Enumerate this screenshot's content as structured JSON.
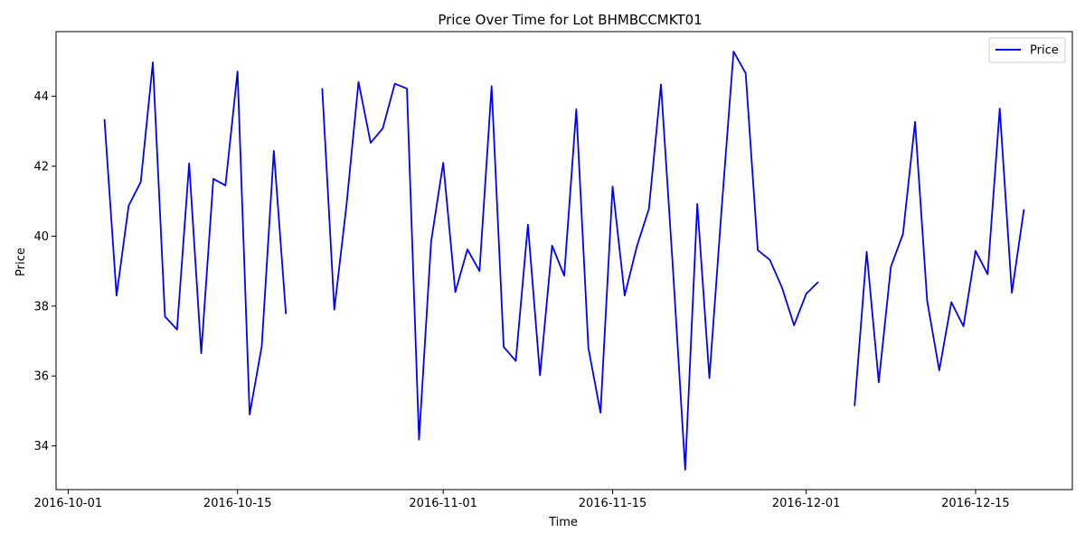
{
  "chart_data": {
    "type": "line",
    "title": "Price Over Time for Lot BHMBCCMKT01",
    "xlabel": "Time",
    "ylabel": "Price",
    "x_range": [
      "2016-09-30",
      "2016-12-23"
    ],
    "ylim": [
      32.75,
      45.85
    ],
    "x_ticks": [
      "2016-10-01",
      "2016-10-15",
      "2016-11-01",
      "2016-11-15",
      "2016-12-01",
      "2016-12-15"
    ],
    "y_ticks": [
      34,
      36,
      38,
      40,
      42,
      44
    ],
    "legend": {
      "position": "top-right",
      "entries": [
        "Price"
      ]
    },
    "grid": false,
    "series": [
      {
        "name": "Price",
        "color": "#0000ff",
        "points": [
          [
            "2016-10-04",
            43.35
          ],
          [
            "2016-10-05",
            38.3
          ],
          [
            "2016-10-06",
            40.87
          ],
          [
            "2016-10-07",
            41.55
          ],
          [
            "2016-10-08",
            44.97
          ],
          [
            "2016-10-09",
            37.7
          ],
          [
            "2016-10-10",
            37.33
          ],
          [
            "2016-10-11",
            42.08
          ],
          [
            "2016-10-12",
            36.65
          ],
          [
            "2016-10-13",
            41.64
          ],
          [
            "2016-10-14",
            41.45
          ],
          [
            "2016-10-15",
            44.71
          ],
          [
            "2016-10-16",
            34.9
          ],
          [
            "2016-10-17",
            36.85
          ],
          [
            "2016-10-18",
            42.44
          ],
          [
            "2016-10-19",
            37.77
          ],
          null,
          [
            "2016-10-22",
            44.23
          ],
          [
            "2016-10-23",
            37.9
          ],
          [
            "2016-10-24",
            40.87
          ],
          [
            "2016-10-25",
            44.41
          ],
          [
            "2016-10-26",
            42.67
          ],
          [
            "2016-10-27",
            43.08
          ],
          [
            "2016-10-28",
            44.36
          ],
          [
            "2016-10-29",
            44.22
          ],
          [
            "2016-10-30",
            34.18
          ],
          [
            "2016-10-31",
            39.84
          ],
          [
            "2016-11-01",
            42.1
          ],
          [
            "2016-11-02",
            38.4
          ],
          [
            "2016-11-03",
            39.62
          ],
          [
            "2016-11-04",
            39.0
          ],
          [
            "2016-11-05",
            44.29
          ],
          [
            "2016-11-06",
            36.83
          ],
          [
            "2016-11-07",
            36.43
          ],
          [
            "2016-11-08",
            40.33
          ],
          [
            "2016-11-09",
            36.02
          ],
          [
            "2016-11-10",
            39.73
          ],
          [
            "2016-11-11",
            38.87
          ],
          [
            "2016-11-12",
            43.63
          ],
          [
            "2016-11-13",
            36.8
          ],
          [
            "2016-11-14",
            34.95
          ],
          [
            "2016-11-15",
            41.42
          ],
          [
            "2016-11-16",
            38.3
          ],
          [
            "2016-11-17",
            39.7
          ],
          [
            "2016-11-18",
            40.78
          ],
          [
            "2016-11-19",
            44.34
          ],
          [
            "2016-11-20",
            39.0
          ],
          [
            "2016-11-21",
            33.32
          ],
          [
            "2016-11-22",
            40.92
          ],
          [
            "2016-11-23",
            35.94
          ],
          [
            "2016-11-24",
            40.73
          ],
          [
            "2016-11-25",
            45.28
          ],
          [
            "2016-11-26",
            44.66
          ],
          [
            "2016-11-27",
            39.6
          ],
          [
            "2016-11-28",
            39.32
          ],
          [
            "2016-11-29",
            38.53
          ],
          [
            "2016-11-30",
            37.45
          ],
          [
            "2016-12-01",
            38.35
          ],
          [
            "2016-12-02",
            38.69
          ],
          null,
          [
            "2016-12-05",
            35.14
          ],
          [
            "2016-12-06",
            39.55
          ],
          [
            "2016-12-07",
            35.82
          ],
          [
            "2016-12-08",
            39.12
          ],
          [
            "2016-12-09",
            40.06
          ],
          [
            "2016-12-10",
            43.27
          ],
          [
            "2016-12-11",
            38.15
          ],
          [
            "2016-12-12",
            36.16
          ],
          [
            "2016-12-13",
            38.11
          ],
          [
            "2016-12-14",
            37.42
          ],
          [
            "2016-12-15",
            39.58
          ],
          [
            "2016-12-16",
            38.91
          ],
          [
            "2016-12-17",
            43.65
          ],
          [
            "2016-12-18",
            38.38
          ],
          [
            "2016-12-19",
            40.77
          ]
        ]
      }
    ]
  }
}
